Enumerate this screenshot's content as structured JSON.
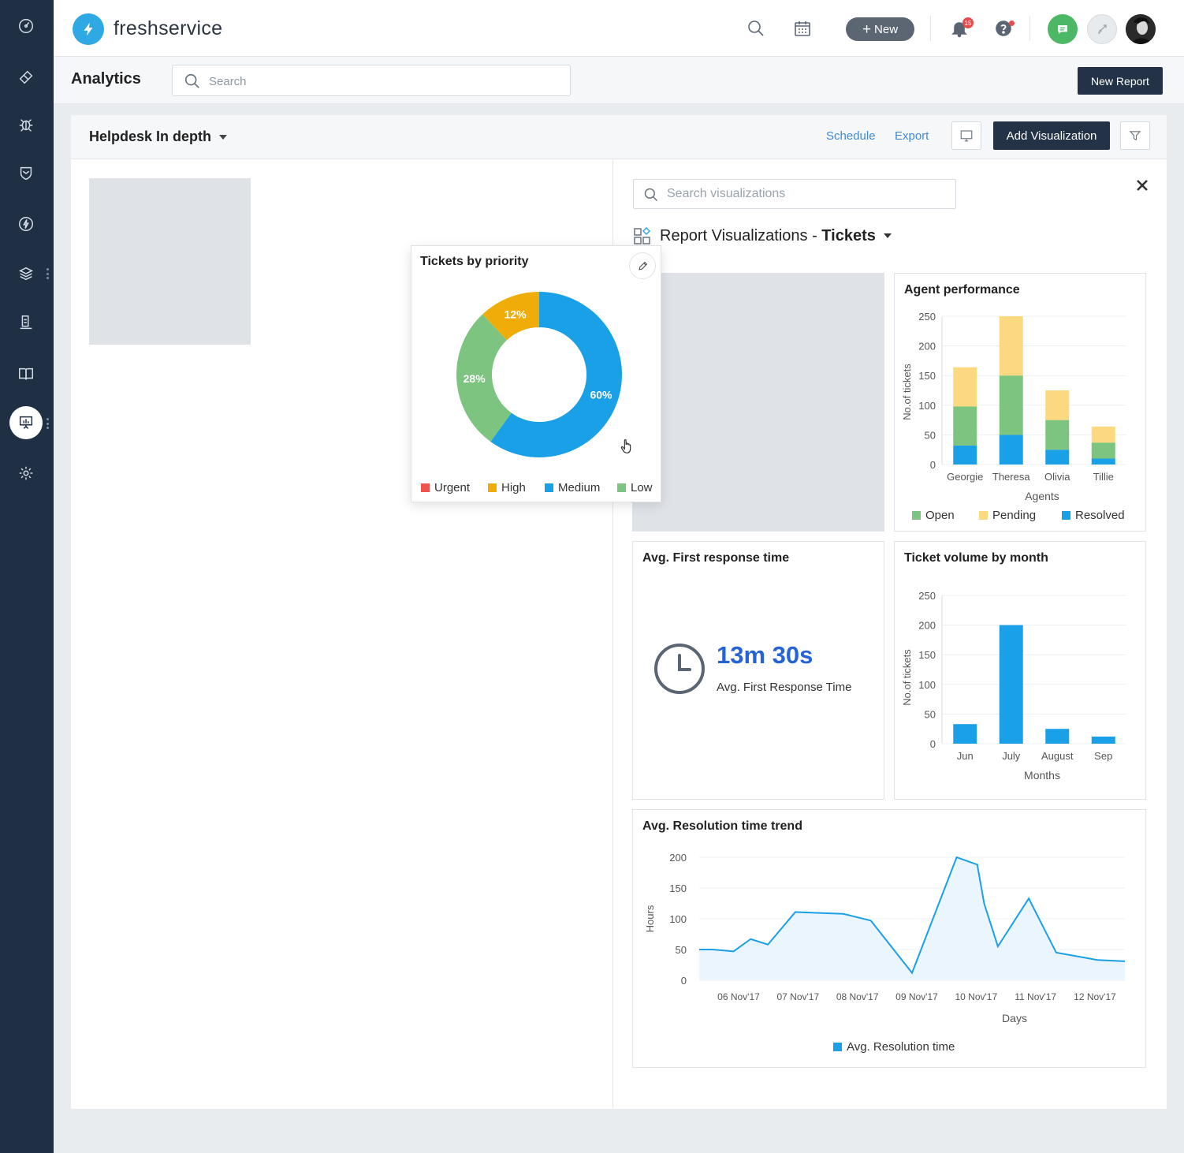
{
  "header": {
    "brand": "freshservice",
    "new_label": "New",
    "notification_count": "15"
  },
  "subbar": {
    "title": "Analytics",
    "search_placeholder": "Search",
    "new_report_label": "New Report"
  },
  "dashboard": {
    "title": "Helpdesk In depth",
    "schedule_label": "Schedule",
    "export_label": "Export",
    "add_visualization_label": "Add Visualization"
  },
  "viz_panel": {
    "search_placeholder": "Search visualizations",
    "heading_prefix": "Report Visualizations - ",
    "heading_entity": "Tickets"
  },
  "colors": {
    "open": "#7cc47f",
    "pending": "#fcd981",
    "resolved": "#1aa0e6",
    "urgent": "#ef5350",
    "high": "#f0ad0a",
    "medium": "#1aa0e6",
    "low": "#7cc47f"
  },
  "tickets_by_priority": {
    "title": "Tickets by priority",
    "chart_data": {
      "type": "pie",
      "slices": [
        {
          "label": "Medium",
          "value": 60,
          "text": "60%"
        },
        {
          "label": "Low",
          "value": 28,
          "text": "28%"
        },
        {
          "label": "High",
          "value": 12,
          "text": "12%"
        },
        {
          "label": "Urgent",
          "value": 0,
          "text": ""
        }
      ]
    },
    "legend": [
      "Urgent",
      "High",
      "Medium",
      "Low"
    ]
  },
  "agent_performance": {
    "title": "Agent performance",
    "chart_data": {
      "type": "bar",
      "stacked": true,
      "categories": [
        "Georgie",
        "Theresa",
        "Olivia",
        "Tillie"
      ],
      "series": [
        {
          "name": "Resolved",
          "values": [
            32,
            50,
            25,
            10
          ]
        },
        {
          "name": "Open",
          "values": [
            66,
            100,
            50,
            27
          ]
        },
        {
          "name": "Pending",
          "values": [
            66,
            100,
            50,
            27
          ]
        }
      ],
      "xlabel": "Agents",
      "ylabel": "No.of tickets",
      "yticks": [
        0,
        50,
        100,
        150,
        200,
        250
      ],
      "ylim": [
        0,
        250
      ]
    },
    "legend": [
      "Open",
      "Pending",
      "Resolved"
    ]
  },
  "first_response": {
    "title": "Avg. First response time",
    "value": "13m 30s",
    "label": "Avg. First Response Time"
  },
  "ticket_volume": {
    "title": "Ticket volume by month",
    "chart_data": {
      "type": "bar",
      "categories": [
        "Jun",
        "July",
        "August",
        "Sep"
      ],
      "values": [
        33,
        200,
        25,
        12
      ],
      "xlabel": "Months",
      "ylabel": "No.of tickets",
      "yticks": [
        0,
        50,
        100,
        150,
        200,
        250
      ],
      "ylim": [
        0,
        250
      ]
    }
  },
  "resolution_trend": {
    "title": "Avg. Resolution time trend",
    "chart_data": {
      "type": "area",
      "x": [
        0,
        0.2,
        0.5,
        0.75,
        1,
        1.4,
        2.1,
        2.5,
        3.1,
        3.75,
        4.05,
        4.15,
        4.35,
        4.8,
        5.2,
        5.8,
        6.2
      ],
      "values": [
        50,
        50,
        47,
        67,
        58,
        111,
        108,
        97,
        12,
        200,
        188,
        125,
        55,
        133,
        45,
        33,
        31
      ],
      "xtick_labels": [
        "06 Nov'17",
        "07 Nov'17",
        "08 Nov'17",
        "09 Nov'17",
        "10 Nov'17",
        "11 Nov'17",
        "12 Nov'17"
      ],
      "xlabel": "Days",
      "ylabel": "Hours",
      "yticks": [
        0,
        50,
        100,
        150,
        200
      ],
      "ylim": [
        0,
        200
      ]
    },
    "legend": "Avg. Resolution time"
  }
}
